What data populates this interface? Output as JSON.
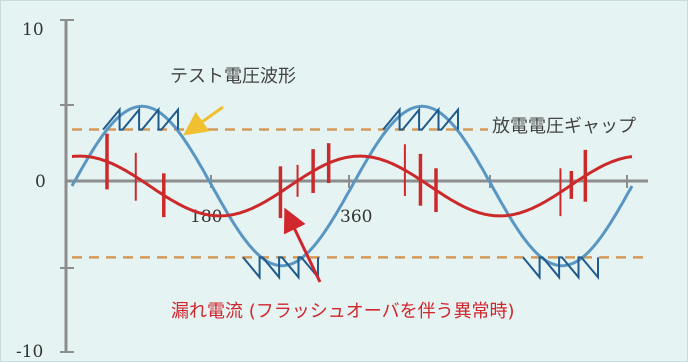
{
  "chart_data": {
    "type": "line",
    "title": "",
    "ylim": [
      -10,
      10
    ],
    "yticks": [
      {
        "value": 10,
        "label": "10"
      },
      {
        "value": 0,
        "label": "0"
      },
      {
        "value": -10,
        "label": "-10"
      }
    ],
    "xlim": [
      0,
      720
    ],
    "xticks": [
      {
        "value": 180,
        "label": "180"
      },
      {
        "value": 360,
        "label": "360"
      }
    ],
    "grid": false,
    "series": [
      {
        "key": "test_voltage",
        "name": "テスト電圧波形",
        "amplitude": 4.8,
        "period_deg": 360,
        "color": "#5a96c2"
      },
      {
        "key": "leakage_current",
        "name": "漏れ電流 (フラッシュオーバを伴う異常時)",
        "amplitude": 1.8,
        "phase_deg": 80,
        "period_deg": 360,
        "color": "#cc2a2a"
      }
    ],
    "gap_levels": [
      3.4,
      -4.3
    ],
    "gap_label": "放電電圧ギャップ",
    "gap_color": "#d39a5c",
    "discharge_spikes": [
      {
        "x": 45,
        "amp": 2.8
      },
      {
        "x": 82,
        "amp": 2.4
      },
      {
        "x": 118,
        "amp": 2.2
      },
      {
        "x": 268,
        "amp": -2.6
      },
      {
        "x": 290,
        "amp": -1.6
      },
      {
        "x": 310,
        "amp": -2.2
      },
      {
        "x": 330,
        "amp": 2.0
      },
      {
        "x": 428,
        "amp": 2.6
      },
      {
        "x": 448,
        "amp": 2.6
      },
      {
        "x": 468,
        "amp": 2.2
      },
      {
        "x": 628,
        "amp": -2.4
      },
      {
        "x": 642,
        "amp": -1.4
      },
      {
        "x": 660,
        "amp": 2.6
      }
    ]
  },
  "annotations": {
    "test_voltage": "テスト電圧波形",
    "gap": "放電電圧ギャップ",
    "leakage": "漏れ電流 (フラッシュオーバを伴う異常時)"
  },
  "colors": {
    "panel_bg": "#e5f3f3",
    "axis": "#8d8d8d",
    "label_red": "#d0262d",
    "arrow_yellow": "#f0c030"
  }
}
